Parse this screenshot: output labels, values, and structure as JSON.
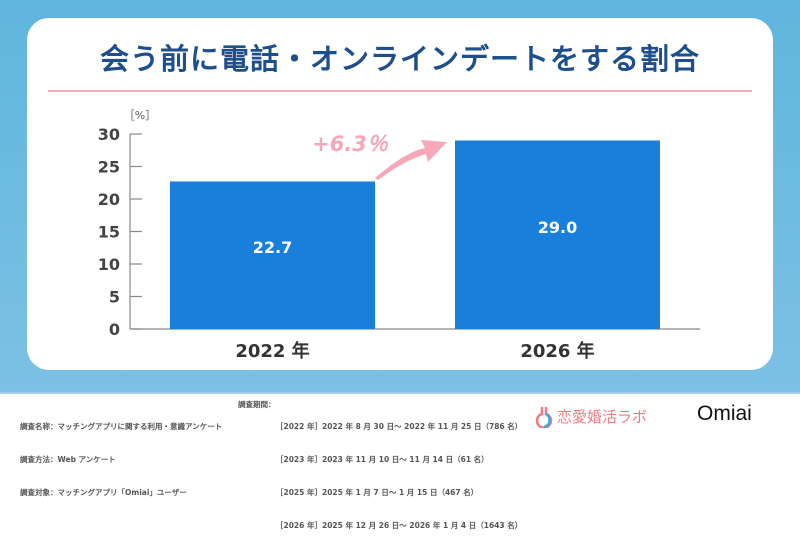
{
  "title": "会う前に電話・オンラインデートをする割合",
  "chart_data": {
    "type": "bar",
    "categories": [
      "2022 年",
      "2026 年"
    ],
    "values": [
      22.7,
      29.0
    ],
    "value_labels": [
      "22.7",
      "29.0"
    ],
    "ylabel": "［%］",
    "ylim": [
      0,
      30
    ],
    "yticks": [
      0,
      5,
      10,
      15,
      20,
      25,
      30
    ],
    "grid": false,
    "annotation": "+6.3％",
    "colors": {
      "bar": "#1a7fdb",
      "annotation": "#f7a8b8"
    }
  },
  "footer": {
    "left": [
      "調査名称：マッチングアプリに関する利用・意識アンケート",
      "調査方法：Web アンケート",
      "調査対象：マッチングアプリ「Omiai」ユーザー"
    ],
    "period_label": "調査期間：",
    "periods": [
      "［2022 年］2022 年 8 月 30 日～ 2022 年 11 月 25 日（786 名）",
      "［2023 年］2023 年 11 月 10 日～ 11 月 14 日（61 名）",
      "［2025 年］2025 年 1 月 7 日～ 1 月 15 日（467 名）",
      "［2026 年］2025 年 12 月 26 日～ 2026 年 1 月 4 日（1643 名）"
    ],
    "logo1": "恋愛婚活ラボ",
    "logo2": "Omiai"
  }
}
